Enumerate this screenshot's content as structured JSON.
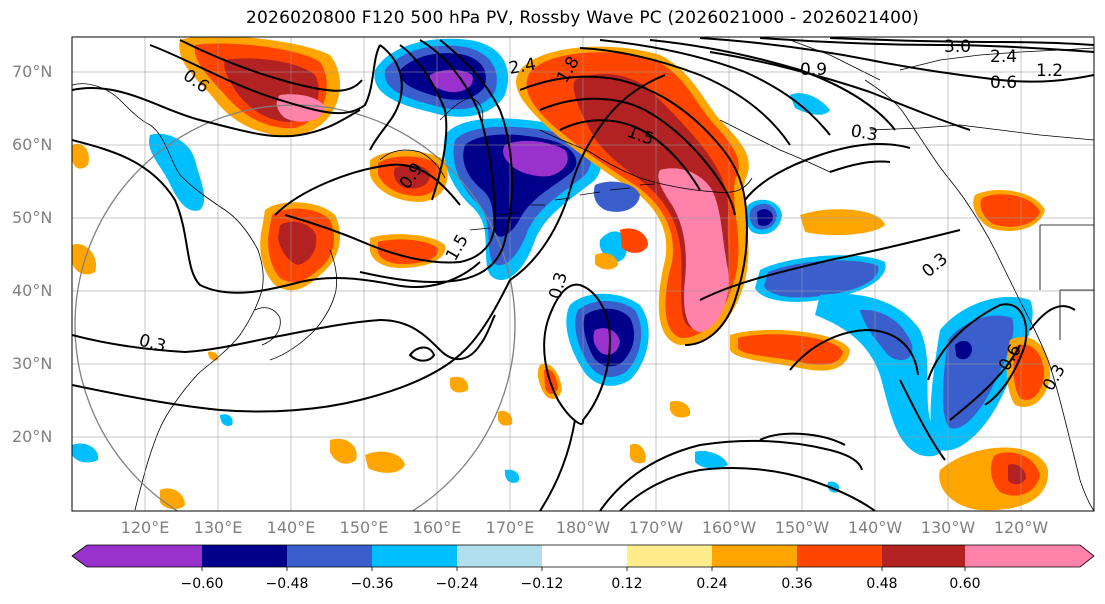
{
  "title": "2026020800 F120 500 hPa PV, Rossby Wave PC (2026021000 - 2026021400)",
  "axes": {
    "lat_labels": [
      "70°N",
      "60°N",
      "50°N",
      "40°N",
      "30°N",
      "20°N"
    ],
    "lon_labels": [
      "120°E",
      "130°E",
      "140°E",
      "150°E",
      "160°E",
      "170°E",
      "180°W",
      "170°W",
      "160°W",
      "150°W",
      "140°W",
      "130°W",
      "120°W"
    ]
  },
  "contour_labels": [
    "0.6",
    "2.4",
    "1.8",
    "1.5",
    "0.9",
    "1.5",
    "0.3",
    "0.3",
    "0.9",
    "3.0",
    "2.4",
    "0.6",
    "0.3",
    "0.3",
    "0.6",
    "0.3",
    "1.2"
  ],
  "colorbar": {
    "ticks": [
      "−0.60",
      "−0.48",
      "−0.36",
      "−0.24",
      "−0.12",
      "0.12",
      "0.24",
      "0.36",
      "0.48",
      "0.60"
    ],
    "colors": [
      "#9932cc",
      "#00008b",
      "#3a5fcd",
      "#00bfff",
      "#b2dfee",
      "#ffffff",
      "#ffec8b",
      "#ffa500",
      "#ff4500",
      "#b22222",
      "#ff82ab"
    ]
  }
}
